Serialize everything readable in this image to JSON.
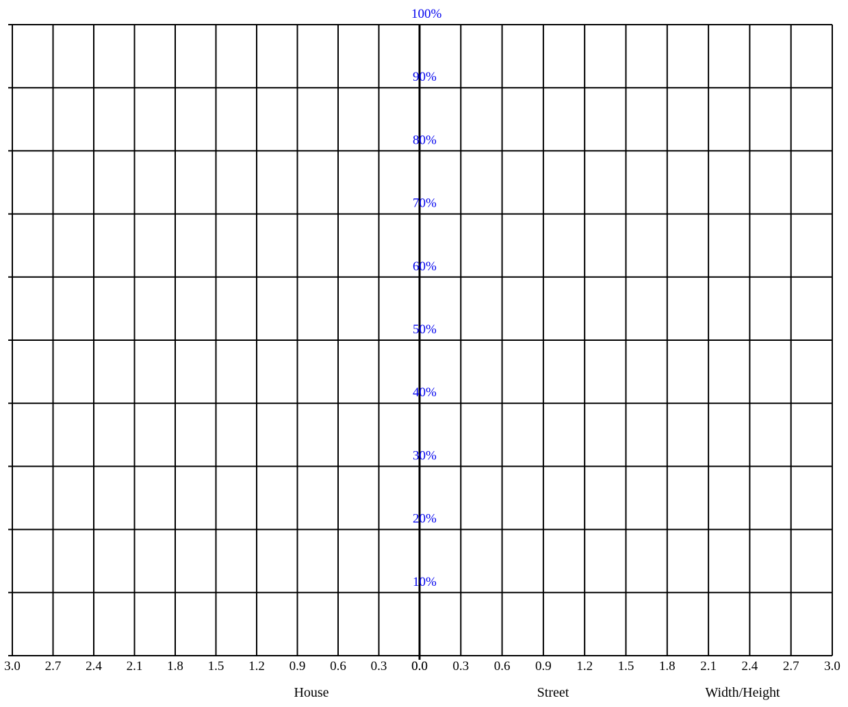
{
  "chart_data": {
    "type": "grid",
    "title": "",
    "x_ticks_left": [
      "3.0",
      "2.7",
      "2.4",
      "2.1",
      "1.8",
      "1.5",
      "1.2",
      "0.9",
      "0.6",
      "0.3",
      "0.0"
    ],
    "x_ticks_right": [
      "0.0",
      "0.3",
      "0.6",
      "0.9",
      "1.2",
      "1.5",
      "1.8",
      "2.1",
      "2.4",
      "2.7",
      "3.0"
    ],
    "y_ticks": [
      "10%",
      "20%",
      "30%",
      "40%",
      "50%",
      "60%",
      "70%",
      "80%",
      "90%",
      "100%"
    ],
    "x_range_left": [
      3.0,
      0.0
    ],
    "x_range_right": [
      0.0,
      3.0
    ],
    "y_range": [
      0,
      100
    ],
    "grid": true,
    "footer_labels": {
      "house": "House",
      "street": "Street",
      "width_height": "Width/Height"
    },
    "colors": {
      "grid": "#000000",
      "y_tick_text": "#0000ee",
      "x_tick_text": "#000000"
    }
  }
}
